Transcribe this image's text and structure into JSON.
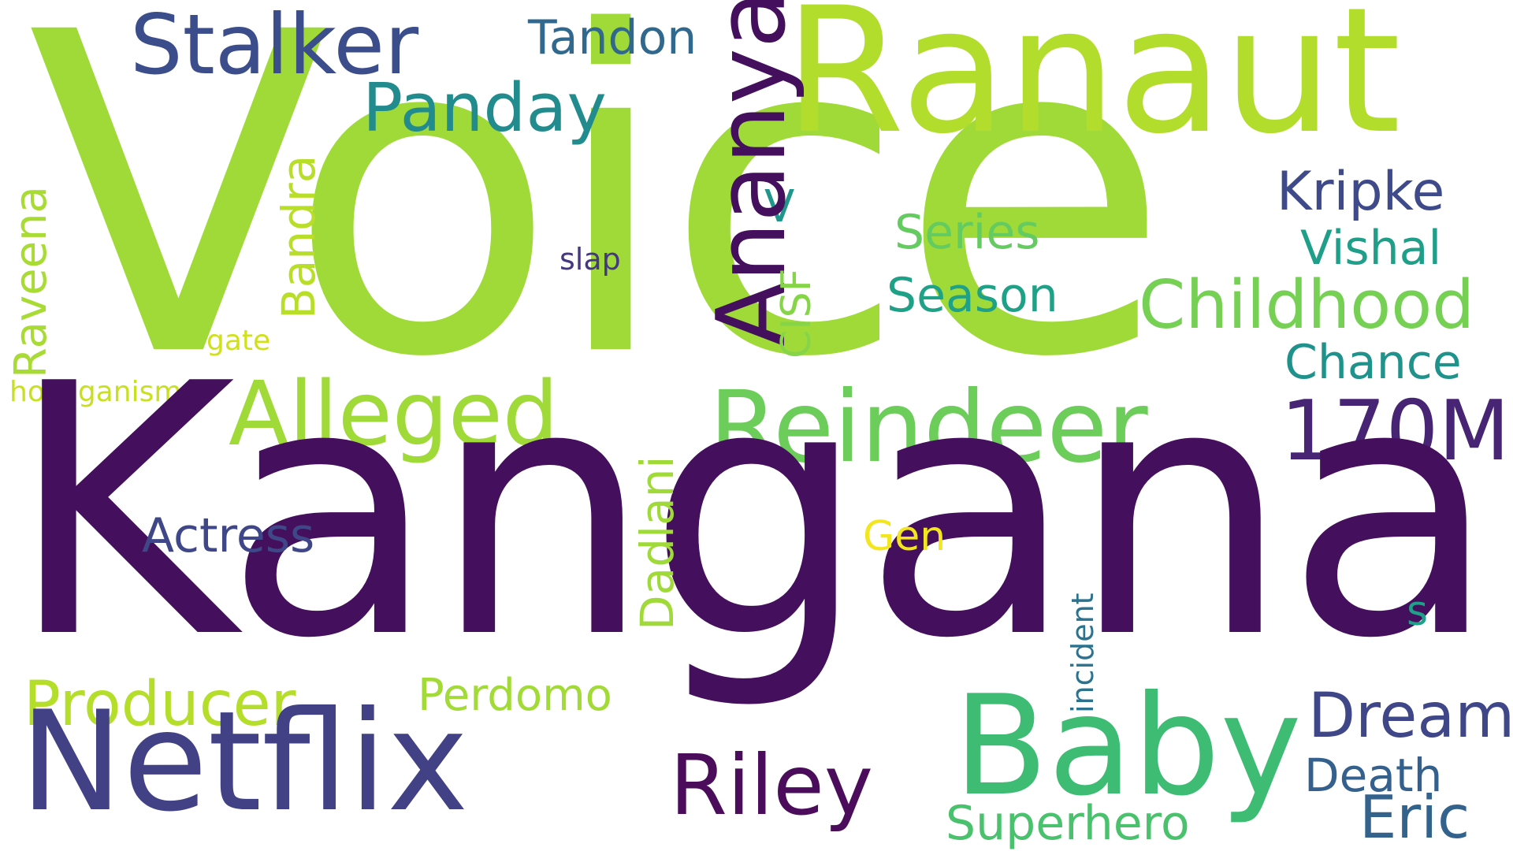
{
  "words": {
    "voice": {
      "text": "Voice",
      "color": "#a0da39"
    },
    "kangana": {
      "text": "Kangana",
      "color": "#440f5c"
    },
    "ranaut": {
      "text": "Ranaut",
      "color": "#b2dd2d"
    },
    "netflix": {
      "text": "Netflix",
      "color": "#424186"
    },
    "baby": {
      "text": "Baby",
      "color": "#3ebc74"
    },
    "reindeer": {
      "text": "Reindeer",
      "color": "#6ccd5a"
    },
    "ananya": {
      "text": "Ananya",
      "color": "#440f5c"
    },
    "stalker": {
      "text": "Stalker",
      "color": "#3b4d8b"
    },
    "alleged": {
      "text": "Alleged",
      "color": "#a0da39"
    },
    "riley": {
      "text": "Riley",
      "color": "#4b0c5b"
    },
    "170m": {
      "text": "170M",
      "color": "#482475"
    },
    "panday": {
      "text": "Panday",
      "color": "#228b8d"
    },
    "childhood": {
      "text": "Childhood",
      "color": "#75d054"
    },
    "producer": {
      "text": "Producer",
      "color": "#b5de2b"
    },
    "dream": {
      "text": "Dream",
      "color": "#3f4788"
    },
    "eric": {
      "text": "Eric",
      "color": "#33628d"
    },
    "tandon": {
      "text": "Tandon",
      "color": "#31688e"
    },
    "kripke": {
      "text": "Kripke",
      "color": "#3e4a89"
    },
    "vishal": {
      "text": "Vishal",
      "color": "#1f9e89"
    },
    "chance": {
      "text": "Chance",
      "color": "#20928c"
    },
    "series": {
      "text": "Series",
      "color": "#63cb5f"
    },
    "season": {
      "text": "Season",
      "color": "#1fa187"
    },
    "actress": {
      "text": "Actress",
      "color": "#3f4788"
    },
    "perdomo": {
      "text": "Perdomo",
      "color": "#a2da37"
    },
    "death": {
      "text": "Death",
      "color": "#34608d"
    },
    "superhero": {
      "text": "Superhero",
      "color": "#4ac16d"
    },
    "gen": {
      "text": "Gen",
      "color": "#f3e51e"
    },
    "s": {
      "text": "s",
      "color": "#1fa088"
    },
    "v": {
      "text": "V",
      "color": "#1f958b"
    },
    "slap": {
      "text": "slap",
      "color": "#453781"
    },
    "gate": {
      "text": "gate",
      "color": "#d0e11c"
    },
    "hooliganism": {
      "text": "hooliganism",
      "color": "#c8e020"
    },
    "raveena": {
      "text": "Raveena",
      "color": "#a8db34"
    },
    "bandra": {
      "text": "Bandra",
      "color": "#b8de29"
    },
    "cisf": {
      "text": "CISF",
      "color": "#86d549"
    },
    "dadlani": {
      "text": "Dadlani",
      "color": "#a0da39"
    },
    "incident": {
      "text": "incident",
      "color": "#2c728e"
    }
  }
}
